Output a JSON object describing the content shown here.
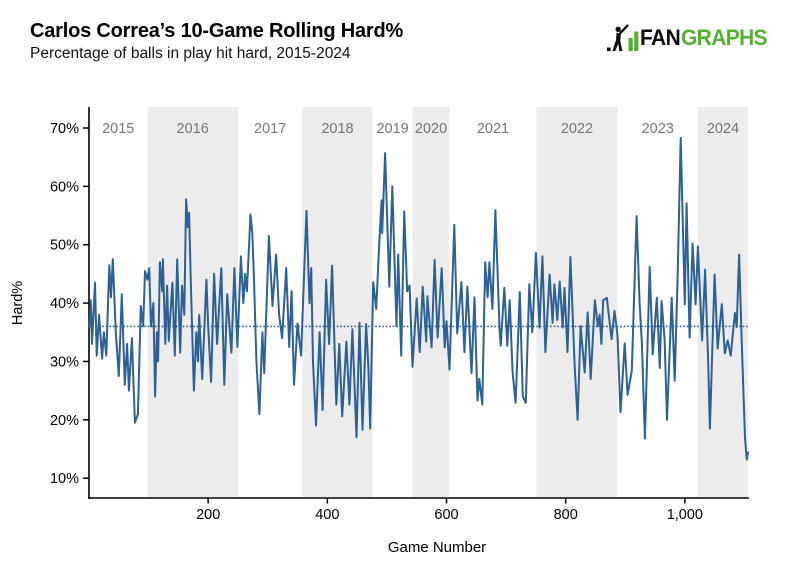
{
  "header": {
    "title": "Carlos Correa’s 10-Game Rolling Hard%",
    "subtitle": "Percentage of balls in play hit hard, 2015-2024"
  },
  "logo": {
    "icon": "fangraphs-batter-bars-icon",
    "fan": "FAN",
    "graphs": "GRAPHS"
  },
  "colors": {
    "line": "#2D6096",
    "mean_line": "#2D6096",
    "band": "#ECECEC",
    "year_label": "#757575",
    "axis": "#000000",
    "logo_green": "#52B130"
  },
  "chart_data": {
    "type": "line",
    "title": "Carlos Correa’s 10-Game Rolling Hard%",
    "subtitle": "Percentage of balls in play hit hard, 2015-2024",
    "xlabel": "Game Number",
    "ylabel": "Hard%",
    "legend": "none",
    "grid": "off",
    "xlim": [
      0,
      1106
    ],
    "ylim": [
      6.6,
      73.6
    ],
    "x_ticks": [
      {
        "value": 200,
        "label": "200"
      },
      {
        "value": 400,
        "label": "400"
      },
      {
        "value": 600,
        "label": "600"
      },
      {
        "value": 800,
        "label": "800"
      },
      {
        "value": 1000,
        "label": "1,000"
      }
    ],
    "y_ticks": [
      {
        "value": 10,
        "label": "10%"
      },
      {
        "value": 20,
        "label": "20%"
      },
      {
        "value": 30,
        "label": "30%"
      },
      {
        "value": 40,
        "label": "40%"
      },
      {
        "value": 50,
        "label": "50%"
      },
      {
        "value": 60,
        "label": "60%"
      },
      {
        "value": 70,
        "label": "70%"
      }
    ],
    "mean_value": 36,
    "year_bands": [
      {
        "label": "2015",
        "start": 0,
        "end": 98,
        "shaded": false
      },
      {
        "label": "2016",
        "start": 98,
        "end": 250,
        "shaded": true
      },
      {
        "label": "2017",
        "start": 250,
        "end": 358,
        "shaded": false
      },
      {
        "label": "2018",
        "start": 358,
        "end": 476,
        "shaded": true
      },
      {
        "label": "2019",
        "start": 476,
        "end": 543,
        "shaded": false
      },
      {
        "label": "2020",
        "start": 543,
        "end": 605,
        "shaded": true
      },
      {
        "label": "2021",
        "start": 605,
        "end": 751,
        "shaded": false
      },
      {
        "label": "2022",
        "start": 751,
        "end": 887,
        "shaded": true
      },
      {
        "label": "2023",
        "start": 887,
        "end": 1022,
        "shaded": false
      },
      {
        "label": "2024",
        "start": 1022,
        "end": 1106,
        "shaded": true
      }
    ],
    "series_name": "10-Game Rolling Hard%",
    "points": [
      [
        1,
        36
      ],
      [
        3,
        40.5
      ],
      [
        5,
        33
      ],
      [
        10,
        43.5
      ],
      [
        13,
        31
      ],
      [
        17,
        38
      ],
      [
        22,
        30.5
      ],
      [
        25,
        35
      ],
      [
        29,
        31
      ],
      [
        34,
        46.5
      ],
      [
        37,
        41
      ],
      [
        40,
        47.5
      ],
      [
        45,
        35
      ],
      [
        50,
        27.5
      ],
      [
        55,
        41.5
      ],
      [
        60,
        26
      ],
      [
        64,
        33
      ],
      [
        67,
        25
      ],
      [
        72,
        34
      ],
      [
        77,
        19.5
      ],
      [
        82,
        21
      ],
      [
        87,
        39.5
      ],
      [
        91,
        36
      ],
      [
        94,
        45.5
      ],
      [
        98,
        44
      ],
      [
        101,
        46
      ],
      [
        104,
        36
      ],
      [
        108,
        40
      ],
      [
        111,
        24
      ],
      [
        114,
        35
      ],
      [
        116,
        30
      ],
      [
        119,
        47
      ],
      [
        123,
        42
      ],
      [
        124,
        47.5
      ],
      [
        128,
        33
      ],
      [
        131,
        43
      ],
      [
        134,
        33.5
      ],
      [
        140,
        43.5
      ],
      [
        144,
        31
      ],
      [
        148,
        47.5
      ],
      [
        153,
        31.5
      ],
      [
        156,
        43
      ],
      [
        160,
        38
      ],
      [
        163,
        57.8
      ],
      [
        166,
        53
      ],
      [
        168,
        55.5
      ],
      [
        171,
        43
      ],
      [
        176,
        25
      ],
      [
        180,
        35
      ],
      [
        183,
        30
      ],
      [
        185,
        38
      ],
      [
        190,
        27
      ],
      [
        197,
        44
      ],
      [
        200,
        36
      ],
      [
        205,
        26.5
      ],
      [
        210,
        45
      ],
      [
        215,
        33
      ],
      [
        222,
        46
      ],
      [
        227,
        26
      ],
      [
        232,
        41.5
      ],
      [
        239,
        31.5
      ],
      [
        244,
        46
      ],
      [
        249,
        32.5
      ],
      [
        255,
        48
      ],
      [
        259,
        40
      ],
      [
        262,
        45
      ],
      [
        265,
        42
      ],
      [
        271,
        55.2
      ],
      [
        274,
        52
      ],
      [
        277,
        44
      ],
      [
        281,
        30
      ],
      [
        286,
        21
      ],
      [
        291,
        35
      ],
      [
        294,
        28
      ],
      [
        302,
        51.5
      ],
      [
        308,
        39.5
      ],
      [
        314,
        48.3
      ],
      [
        319,
        38
      ],
      [
        324,
        34
      ],
      [
        331,
        46
      ],
      [
        336,
        32.5
      ],
      [
        340,
        42
      ],
      [
        344,
        26
      ],
      [
        350,
        36.5
      ],
      [
        356,
        31
      ],
      [
        361,
        45
      ],
      [
        365,
        55.8
      ],
      [
        370,
        40
      ],
      [
        373,
        46
      ],
      [
        376,
        30
      ],
      [
        381,
        19
      ],
      [
        387,
        35
      ],
      [
        392,
        21.7
      ],
      [
        398,
        44
      ],
      [
        403,
        33
      ],
      [
        408,
        46.4
      ],
      [
        415,
        22.6
      ],
      [
        420,
        33
      ],
      [
        425,
        20.6
      ],
      [
        432,
        33.4
      ],
      [
        437,
        22.6
      ],
      [
        442,
        35.5
      ],
      [
        449,
        17
      ],
      [
        454,
        36.6
      ],
      [
        459,
        18.3
      ],
      [
        465,
        36.4
      ],
      [
        469,
        29
      ],
      [
        472,
        18.5
      ],
      [
        477,
        43.6
      ],
      [
        482,
        39
      ],
      [
        487,
        50
      ],
      [
        491,
        57.6
      ],
      [
        492,
        52
      ],
      [
        497,
        65.7
      ],
      [
        504,
        42.8
      ],
      [
        509,
        60
      ],
      [
        516,
        36
      ],
      [
        519,
        48.3
      ],
      [
        524,
        31
      ],
      [
        529,
        55.7
      ],
      [
        534,
        42
      ],
      [
        538,
        43
      ],
      [
        543,
        29.1
      ],
      [
        550,
        40.8
      ],
      [
        555,
        31.6
      ],
      [
        560,
        42.8
      ],
      [
        566,
        33.4
      ],
      [
        568,
        41.2
      ],
      [
        575,
        32.4
      ],
      [
        580,
        47.4
      ],
      [
        585,
        34.1
      ],
      [
        592,
        46
      ],
      [
        597,
        32.4
      ],
      [
        600,
        36.9
      ],
      [
        605,
        28.6
      ],
      [
        613,
        53.4
      ],
      [
        618,
        34.8
      ],
      [
        625,
        43.6
      ],
      [
        630,
        31.6
      ],
      [
        635,
        42.8
      ],
      [
        642,
        28
      ],
      [
        647,
        41
      ],
      [
        652,
        23.3
      ],
      [
        655,
        27
      ],
      [
        660,
        22.6
      ],
      [
        665,
        47
      ],
      [
        669,
        41
      ],
      [
        672,
        47
      ],
      [
        677,
        39
      ],
      [
        682,
        55.9
      ],
      [
        689,
        35.8
      ],
      [
        691,
        32.7
      ],
      [
        697,
        42.6
      ],
      [
        702,
        32.7
      ],
      [
        706,
        40.5
      ],
      [
        711,
        28.1
      ],
      [
        716,
        22.9
      ],
      [
        723,
        41.9
      ],
      [
        728,
        24
      ],
      [
        733,
        22.9
      ],
      [
        739,
        43.2
      ],
      [
        744,
        35
      ],
      [
        750,
        48.6
      ],
      [
        756,
        35.8
      ],
      [
        761,
        48
      ],
      [
        766,
        31.6
      ],
      [
        773,
        44.9
      ],
      [
        778,
        36.6
      ],
      [
        781,
        43.2
      ],
      [
        786,
        37.1
      ],
      [
        790,
        43.7
      ],
      [
        795,
        35.8
      ],
      [
        798,
        42.6
      ],
      [
        803,
        31.6
      ],
      [
        808,
        47.9
      ],
      [
        815,
        29.5
      ],
      [
        820,
        20
      ],
      [
        825,
        36
      ],
      [
        832,
        28.1
      ],
      [
        837,
        38.4
      ],
      [
        842,
        27
      ],
      [
        849,
        40.5
      ],
      [
        854,
        36
      ],
      [
        857,
        38
      ],
      [
        860,
        33
      ],
      [
        863,
        40.5
      ],
      [
        869,
        40.9
      ],
      [
        877,
        33.8
      ],
      [
        882,
        38.7
      ],
      [
        887,
        34.5
      ],
      [
        892,
        21.3
      ],
      [
        899,
        33.1
      ],
      [
        904,
        24.3
      ],
      [
        911,
        28.4
      ],
      [
        919,
        54.9
      ],
      [
        924,
        40
      ],
      [
        928,
        33
      ],
      [
        933,
        16.8
      ],
      [
        941,
        46.2
      ],
      [
        946,
        31.2
      ],
      [
        953,
        40.9
      ],
      [
        958,
        28.9
      ],
      [
        961,
        40.3
      ],
      [
        966,
        33.8
      ],
      [
        970,
        20
      ],
      [
        978,
        40.9
      ],
      [
        983,
        26.7
      ],
      [
        988,
        45
      ],
      [
        993,
        68.3
      ],
      [
        1000,
        39.8
      ],
      [
        1003,
        57.1
      ],
      [
        1008,
        34.1
      ],
      [
        1013,
        50.2
      ],
      [
        1018,
        39.8
      ],
      [
        1022,
        49.7
      ],
      [
        1029,
        33.6
      ],
      [
        1034,
        45.7
      ],
      [
        1039,
        30.3
      ],
      [
        1042,
        18.5
      ],
      [
        1050,
        44.9
      ],
      [
        1055,
        32.2
      ],
      [
        1062,
        39.8
      ],
      [
        1067,
        31.4
      ],
      [
        1072,
        33.6
      ],
      [
        1077,
        31
      ],
      [
        1084,
        38.3
      ],
      [
        1087,
        35.9
      ],
      [
        1091,
        48.3
      ],
      [
        1096,
        31.9
      ],
      [
        1101,
        16.9
      ],
      [
        1104,
        13.2
      ],
      [
        1106,
        14.4
      ]
    ]
  }
}
